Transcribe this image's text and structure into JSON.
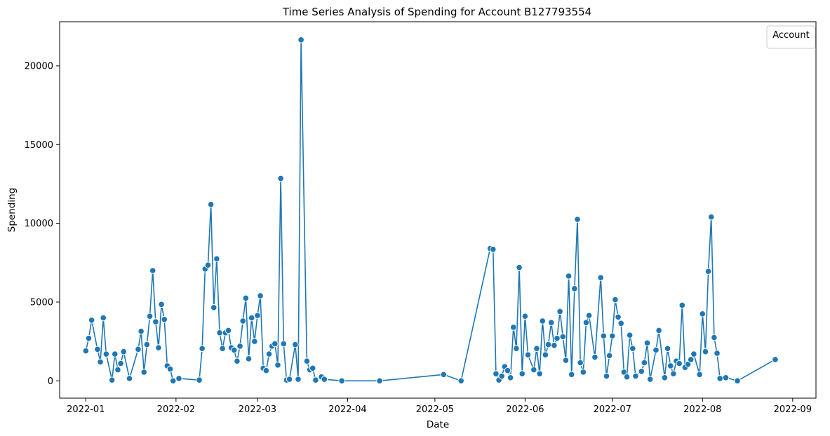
{
  "chart_data": {
    "type": "line",
    "title": "Time Series Analysis of Spending for Account B127793554",
    "xlabel": "Date",
    "ylabel": "Spending",
    "x_tick_labels": [
      "2022-01",
      "2022-02",
      "2022-03",
      "2022-04",
      "2022-05",
      "2022-06",
      "2022-07",
      "2022-08",
      "2022-09"
    ],
    "y_tick_values": [
      0,
      5000,
      10000,
      15000,
      20000
    ],
    "xlim": [
      "2021-12-23",
      "2022-09-09"
    ],
    "ylim": [
      -1100,
      22800
    ],
    "grid": false,
    "legend": {
      "title": "Account",
      "placement": "top-right",
      "entries": []
    },
    "colors": {
      "line": "#1f77b4",
      "marker_edge": "#ffffff"
    },
    "series": [
      {
        "marker": "circle",
        "points": [
          [
            "2022-01-01",
            1900
          ],
          [
            "2022-01-02",
            2700
          ],
          [
            "2022-01-03",
            3850
          ],
          [
            "2022-01-05",
            2000
          ],
          [
            "2022-01-06",
            1200
          ],
          [
            "2022-01-07",
            4000
          ],
          [
            "2022-01-08",
            1700
          ],
          [
            "2022-01-10",
            50
          ],
          [
            "2022-01-11",
            1700
          ],
          [
            "2022-01-12",
            700
          ],
          [
            "2022-01-13",
            1100
          ],
          [
            "2022-01-14",
            1850
          ],
          [
            "2022-01-16",
            150
          ],
          [
            "2022-01-19",
            2000
          ],
          [
            "2022-01-20",
            3150
          ],
          [
            "2022-01-21",
            550
          ],
          [
            "2022-01-22",
            2300
          ],
          [
            "2022-01-23",
            4100
          ],
          [
            "2022-01-24",
            7000
          ],
          [
            "2022-01-25",
            3750
          ],
          [
            "2022-01-26",
            2100
          ],
          [
            "2022-01-27",
            4850
          ],
          [
            "2022-01-28",
            3900
          ],
          [
            "2022-01-29",
            950
          ],
          [
            "2022-01-30",
            750
          ],
          [
            "2022-01-31",
            0
          ],
          [
            "2022-02-02",
            150
          ],
          [
            "2022-02-09",
            50
          ],
          [
            "2022-02-10",
            2050
          ],
          [
            "2022-02-11",
            7100
          ],
          [
            "2022-02-12",
            7350
          ],
          [
            "2022-02-13",
            11200
          ],
          [
            "2022-02-14",
            4650
          ],
          [
            "2022-02-15",
            7750
          ],
          [
            "2022-02-16",
            3050
          ],
          [
            "2022-02-17",
            2050
          ],
          [
            "2022-02-18",
            3050
          ],
          [
            "2022-02-19",
            3200
          ],
          [
            "2022-02-20",
            2100
          ],
          [
            "2022-02-21",
            1950
          ],
          [
            "2022-02-22",
            1250
          ],
          [
            "2022-02-23",
            2200
          ],
          [
            "2022-02-24",
            3800
          ],
          [
            "2022-02-25",
            5250
          ],
          [
            "2022-02-26",
            1400
          ],
          [
            "2022-02-27",
            4000
          ],
          [
            "2022-02-28",
            2500
          ],
          [
            "2022-03-01",
            4150
          ],
          [
            "2022-03-02",
            5400
          ],
          [
            "2022-03-03",
            800
          ],
          [
            "2022-03-04",
            650
          ],
          [
            "2022-03-05",
            1700
          ],
          [
            "2022-03-06",
            2200
          ],
          [
            "2022-03-07",
            2350
          ],
          [
            "2022-03-08",
            1000
          ],
          [
            "2022-03-09",
            12850
          ],
          [
            "2022-03-10",
            2350
          ],
          [
            "2022-03-11",
            50
          ],
          [
            "2022-03-12",
            100
          ],
          [
            "2022-03-14",
            2300
          ],
          [
            "2022-03-15",
            100
          ],
          [
            "2022-03-16",
            21650
          ],
          [
            "2022-03-18",
            1250
          ],
          [
            "2022-03-19",
            700
          ],
          [
            "2022-03-20",
            800
          ],
          [
            "2022-03-21",
            50
          ],
          [
            "2022-03-23",
            250
          ],
          [
            "2022-03-24",
            100
          ],
          [
            "2022-03-30",
            0
          ],
          [
            "2022-04-12",
            0
          ],
          [
            "2022-05-04",
            400
          ],
          [
            "2022-05-10",
            0
          ],
          [
            "2022-05-20",
            8400
          ],
          [
            "2022-05-21",
            8350
          ],
          [
            "2022-05-22",
            450
          ],
          [
            "2022-05-23",
            50
          ],
          [
            "2022-05-24",
            300
          ],
          [
            "2022-05-25",
            900
          ],
          [
            "2022-05-26",
            650
          ],
          [
            "2022-05-27",
            200
          ],
          [
            "2022-05-28",
            3400
          ],
          [
            "2022-05-29",
            2050
          ],
          [
            "2022-05-30",
            7200
          ],
          [
            "2022-05-31",
            450
          ],
          [
            "2022-06-01",
            4100
          ],
          [
            "2022-06-02",
            1650
          ],
          [
            "2022-06-04",
            700
          ],
          [
            "2022-06-05",
            2050
          ],
          [
            "2022-06-06",
            450
          ],
          [
            "2022-06-07",
            3800
          ],
          [
            "2022-06-08",
            1650
          ],
          [
            "2022-06-09",
            2300
          ],
          [
            "2022-06-10",
            3700
          ],
          [
            "2022-06-11",
            2250
          ],
          [
            "2022-06-12",
            2700
          ],
          [
            "2022-06-13",
            4400
          ],
          [
            "2022-06-14",
            2800
          ],
          [
            "2022-06-15",
            1300
          ],
          [
            "2022-06-16",
            6650
          ],
          [
            "2022-06-17",
            400
          ],
          [
            "2022-06-18",
            5850
          ],
          [
            "2022-06-19",
            10250
          ],
          [
            "2022-06-20",
            1150
          ],
          [
            "2022-06-21",
            550
          ],
          [
            "2022-06-22",
            3700
          ],
          [
            "2022-06-23",
            4150
          ],
          [
            "2022-06-25",
            1500
          ],
          [
            "2022-06-27",
            6550
          ],
          [
            "2022-06-28",
            2850
          ],
          [
            "2022-06-29",
            300
          ],
          [
            "2022-06-30",
            1600
          ],
          [
            "2022-07-01",
            2850
          ],
          [
            "2022-07-02",
            5150
          ],
          [
            "2022-07-03",
            4050
          ],
          [
            "2022-07-04",
            3650
          ],
          [
            "2022-07-05",
            550
          ],
          [
            "2022-07-06",
            250
          ],
          [
            "2022-07-07",
            2900
          ],
          [
            "2022-07-08",
            2050
          ],
          [
            "2022-07-09",
            300
          ],
          [
            "2022-07-11",
            600
          ],
          [
            "2022-07-12",
            1150
          ],
          [
            "2022-07-13",
            2400
          ],
          [
            "2022-07-14",
            100
          ],
          [
            "2022-07-16",
            1950
          ],
          [
            "2022-07-17",
            3200
          ],
          [
            "2022-07-19",
            200
          ],
          [
            "2022-07-20",
            2050
          ],
          [
            "2022-07-21",
            950
          ],
          [
            "2022-07-22",
            450
          ],
          [
            "2022-07-23",
            1250
          ],
          [
            "2022-07-24",
            1100
          ],
          [
            "2022-07-25",
            4800
          ],
          [
            "2022-07-26",
            850
          ],
          [
            "2022-07-27",
            1050
          ],
          [
            "2022-07-28",
            1350
          ],
          [
            "2022-07-29",
            1700
          ],
          [
            "2022-07-31",
            400
          ],
          [
            "2022-08-01",
            4250
          ],
          [
            "2022-08-02",
            1850
          ],
          [
            "2022-08-03",
            6950
          ],
          [
            "2022-08-04",
            10400
          ],
          [
            "2022-08-05",
            2750
          ],
          [
            "2022-08-06",
            1750
          ],
          [
            "2022-08-07",
            150
          ],
          [
            "2022-08-09",
            200
          ],
          [
            "2022-08-13",
            0
          ],
          [
            "2022-08-26",
            1350
          ]
        ]
      }
    ]
  }
}
